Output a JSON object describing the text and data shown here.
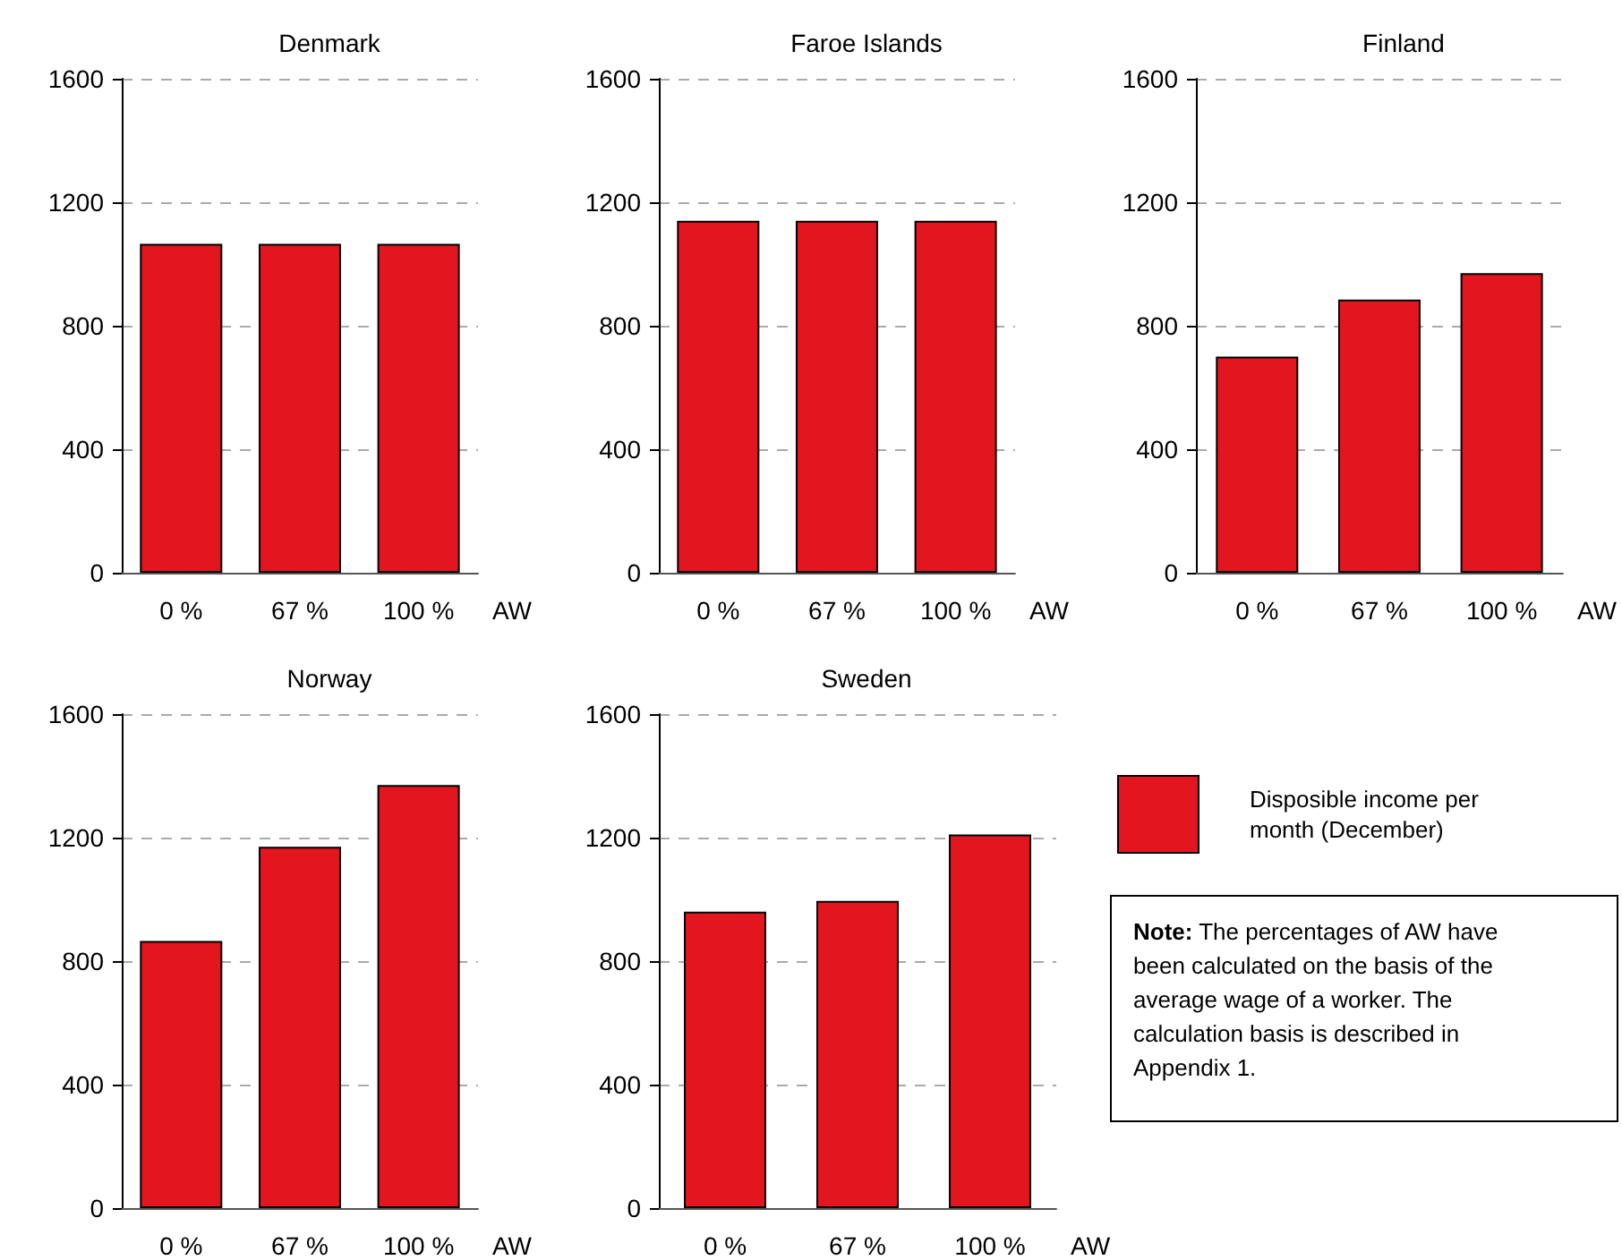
{
  "chart_data": [
    {
      "type": "bar",
      "title": "Denmark",
      "xlabel": "AW",
      "categories": [
        "0 %",
        "67 %",
        "100 %"
      ],
      "series": [
        {
          "color": "#e3151f",
          "values": [
            1065,
            1065,
            1065
          ]
        }
      ],
      "ylim": [
        0,
        1600
      ],
      "yticks": [
        0,
        400,
        800,
        1200,
        1600
      ],
      "grid": "y",
      "legend": false
    },
    {
      "type": "bar",
      "title": "Faroe Islands",
      "xlabel": "AW",
      "categories": [
        "0 %",
        "67 %",
        "100 %"
      ],
      "series": [
        {
          "color": "#e3151f",
          "values": [
            1140,
            1140,
            1140
          ]
        }
      ],
      "ylim": [
        0,
        1600
      ],
      "yticks": [
        0,
        400,
        800,
        1200,
        1600
      ],
      "grid": "y",
      "legend": false
    },
    {
      "type": "bar",
      "title": "Finland",
      "xlabel": "AW",
      "categories": [
        "0 %",
        "67 %",
        "100 %"
      ],
      "series": [
        {
          "color": "#e3151f",
          "values": [
            700,
            885,
            970
          ]
        }
      ],
      "ylim": [
        0,
        1600
      ],
      "yticks": [
        0,
        400,
        800,
        1200,
        1600
      ],
      "grid": "y",
      "legend": false
    },
    {
      "type": "bar",
      "title": "Norway",
      "xlabel": "AW",
      "categories": [
        "0 %",
        "67 %",
        "100 %"
      ],
      "series": [
        {
          "color": "#e3151f",
          "values": [
            865,
            1170,
            1370
          ]
        }
      ],
      "ylim": [
        0,
        1600
      ],
      "yticks": [
        0,
        400,
        800,
        1200,
        1600
      ],
      "grid": "y",
      "legend": false
    },
    {
      "type": "bar",
      "title": "Sweden",
      "xlabel": "AW",
      "categories": [
        "0 %",
        "67 %",
        "100 %"
      ],
      "series": [
        {
          "name": "Disposible income per month (December)",
          "color": "#e3151f",
          "values": [
            960,
            995,
            1210
          ]
        }
      ],
      "ylim": [
        0,
        1600
      ],
      "yticks": [
        0,
        400,
        800,
        1200,
        1600
      ],
      "grid": "y",
      "legend": "right",
      "annotations": [
        "Note: The percentages of AW have been calculated on the basis of the average wage of a worker. The calculation basis is described in Appendix 1."
      ]
    }
  ]
}
